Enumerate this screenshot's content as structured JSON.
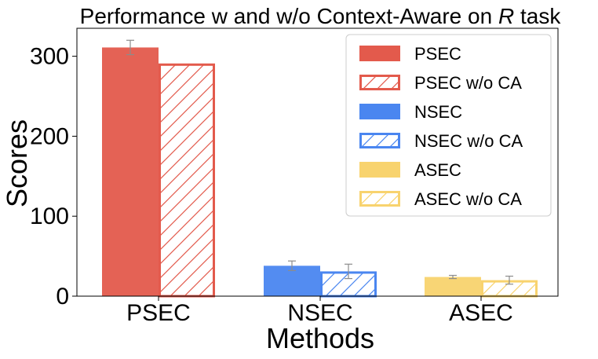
{
  "chart_data": {
    "type": "bar",
    "title_prefix": "Performance w and w/o Context-Aware on ",
    "title_italic": "R",
    "title_suffix": " task",
    "xlabel": "Methods",
    "ylabel": "Scores",
    "categories": [
      "PSEC",
      "NSEC",
      "ASEC"
    ],
    "ylim": [
      0,
      335
    ],
    "yticks": [
      0,
      100,
      200,
      300
    ],
    "grid": false,
    "legend_position": "top-right",
    "colors": {
      "psec": "#e35a4c",
      "nsec": "#4a86f0",
      "asec": "#f8d36e",
      "error": "#8c8c8c"
    },
    "series": [
      {
        "name": "PSEC",
        "category": "PSEC",
        "variant": "with",
        "color_key": "psec",
        "value": 311,
        "error": 9
      },
      {
        "name": "PSEC w/o CA",
        "category": "PSEC",
        "variant": "without",
        "color_key": "psec",
        "value": 291,
        "error": null
      },
      {
        "name": "NSEC",
        "category": "NSEC",
        "variant": "with",
        "color_key": "nsec",
        "value": 38,
        "error": 6
      },
      {
        "name": "NSEC w/o CA",
        "category": "NSEC",
        "variant": "without",
        "color_key": "nsec",
        "value": 31,
        "error": 9
      },
      {
        "name": "ASEC",
        "category": "ASEC",
        "variant": "with",
        "color_key": "asec",
        "value": 24,
        "error": 2
      },
      {
        "name": "ASEC w/o CA",
        "category": "ASEC",
        "variant": "without",
        "color_key": "asec",
        "value": 20,
        "error": 5
      }
    ]
  }
}
